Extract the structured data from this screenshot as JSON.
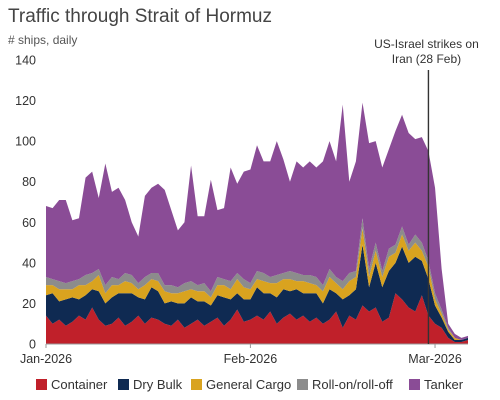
{
  "chart_data": {
    "type": "area",
    "stacked": true,
    "title": "Traffic through Strait of Hormuz",
    "subtitle": "# ships, daily",
    "ylim": [
      0,
      140
    ],
    "yticks": [
      0,
      20,
      40,
      60,
      80,
      100,
      120,
      140
    ],
    "xlim": [
      "2026-01-01",
      "2026-03-06"
    ],
    "xticks": [
      {
        "date": "2026-01-01",
        "label": "Jan-2026"
      },
      {
        "date": "2026-02-01",
        "label": "Feb-2026"
      },
      {
        "date": "2026-03-01",
        "label": "Mar-2026"
      }
    ],
    "grid": false,
    "legend_position": "bottom",
    "annotation": {
      "date": "2026-02-28",
      "text_lines": [
        "US-Israel strikes on",
        "Iran (28 Feb)"
      ]
    },
    "x": [
      "2026-01-01",
      "2026-01-02",
      "2026-01-03",
      "2026-01-04",
      "2026-01-05",
      "2026-01-06",
      "2026-01-07",
      "2026-01-08",
      "2026-01-09",
      "2026-01-10",
      "2026-01-11",
      "2026-01-12",
      "2026-01-13",
      "2026-01-14",
      "2026-01-15",
      "2026-01-16",
      "2026-01-17",
      "2026-01-18",
      "2026-01-19",
      "2026-01-20",
      "2026-01-21",
      "2026-01-22",
      "2026-01-23",
      "2026-01-24",
      "2026-01-25",
      "2026-01-26",
      "2026-01-27",
      "2026-01-28",
      "2026-01-29",
      "2026-01-30",
      "2026-01-31",
      "2026-02-01",
      "2026-02-02",
      "2026-02-03",
      "2026-02-04",
      "2026-02-05",
      "2026-02-06",
      "2026-02-07",
      "2026-02-08",
      "2026-02-09",
      "2026-02-10",
      "2026-02-11",
      "2026-02-12",
      "2026-02-13",
      "2026-02-14",
      "2026-02-15",
      "2026-02-16",
      "2026-02-17",
      "2026-02-18",
      "2026-02-19",
      "2026-02-20",
      "2026-02-21",
      "2026-02-22",
      "2026-02-23",
      "2026-02-24",
      "2026-02-25",
      "2026-02-26",
      "2026-02-27",
      "2026-02-28",
      "2026-03-01",
      "2026-03-02",
      "2026-03-03",
      "2026-03-04",
      "2026-03-05",
      "2026-03-06"
    ],
    "series": [
      {
        "name": "Container",
        "color": "#c0202a",
        "values": [
          14,
          10,
          12,
          9,
          11,
          14,
          12,
          18,
          12,
          9,
          10,
          13,
          9,
          11,
          14,
          10,
          13,
          12,
          10,
          9,
          12,
          8,
          10,
          12,
          9,
          11,
          13,
          9,
          12,
          17,
          11,
          12,
          14,
          12,
          16,
          10,
          13,
          15,
          12,
          14,
          11,
          13,
          10,
          12,
          16,
          8,
          14,
          12,
          19,
          16,
          18,
          11,
          13,
          25,
          22,
          18,
          16,
          24,
          14,
          10,
          8,
          3,
          1,
          1,
          2
        ]
      },
      {
        "name": "Dry Bulk",
        "color": "#0f2a52",
        "values": [
          10,
          15,
          9,
          13,
          12,
          8,
          12,
          9,
          14,
          11,
          13,
          12,
          16,
          14,
          9,
          12,
          15,
          14,
          10,
          12,
          8,
          12,
          13,
          9,
          12,
          8,
          11,
          14,
          10,
          8,
          11,
          10,
          14,
          13,
          9,
          13,
          14,
          11,
          15,
          11,
          14,
          12,
          10,
          15,
          9,
          14,
          10,
          15,
          30,
          12,
          22,
          17,
          23,
          15,
          26,
          22,
          27,
          17,
          18,
          9,
          5,
          3,
          1,
          1,
          1
        ]
      },
      {
        "name": "General Cargo",
        "color": "#d9a31f",
        "values": [
          5,
          4,
          6,
          5,
          4,
          7,
          5,
          4,
          8,
          5,
          6,
          4,
          6,
          5,
          4,
          7,
          4,
          5,
          6,
          4,
          5,
          6,
          4,
          5,
          5,
          4,
          5,
          6,
          5,
          7,
          6,
          5,
          4,
          6,
          5,
          7,
          5,
          6,
          4,
          6,
          5,
          4,
          6,
          6,
          5,
          5,
          7,
          6,
          8,
          5,
          6,
          5,
          7,
          5,
          6,
          6,
          7,
          5,
          6,
          3,
          2,
          1,
          1,
          0,
          0
        ]
      },
      {
        "name": "Roll-on/roll-off",
        "color": "#8c8c8c",
        "values": [
          4,
          3,
          4,
          3,
          4,
          3,
          5,
          4,
          3,
          4,
          4,
          3,
          4,
          4,
          3,
          4,
          3,
          4,
          3,
          4,
          3,
          4,
          4,
          3,
          4,
          3,
          4,
          3,
          4,
          3,
          4,
          3,
          4,
          4,
          3,
          4,
          3,
          4,
          4,
          3,
          4,
          4,
          3,
          4,
          3,
          4,
          4,
          3,
          5,
          4,
          4,
          3,
          4,
          4,
          4,
          3,
          4,
          4,
          3,
          3,
          2,
          1,
          0,
          0,
          0
        ]
      },
      {
        "name": "Tanker",
        "color": "#8a4c96",
        "values": [
          35,
          35,
          40,
          41,
          30,
          30,
          48,
          50,
          35,
          60,
          42,
          45,
          36,
          26,
          23,
          40,
          42,
          44,
          47,
          37,
          28,
          30,
          57,
          34,
          33,
          55,
          33,
          35,
          56,
          44,
          53,
          56,
          62,
          55,
          57,
          66,
          56,
          44,
          55,
          53,
          56,
          54,
          61,
          63,
          57,
          87,
          45,
          54,
          57,
          62,
          50,
          51,
          49,
          56,
          55,
          55,
          47,
          52,
          54,
          52,
          20,
          2,
          2,
          1,
          1
        ]
      }
    ]
  }
}
